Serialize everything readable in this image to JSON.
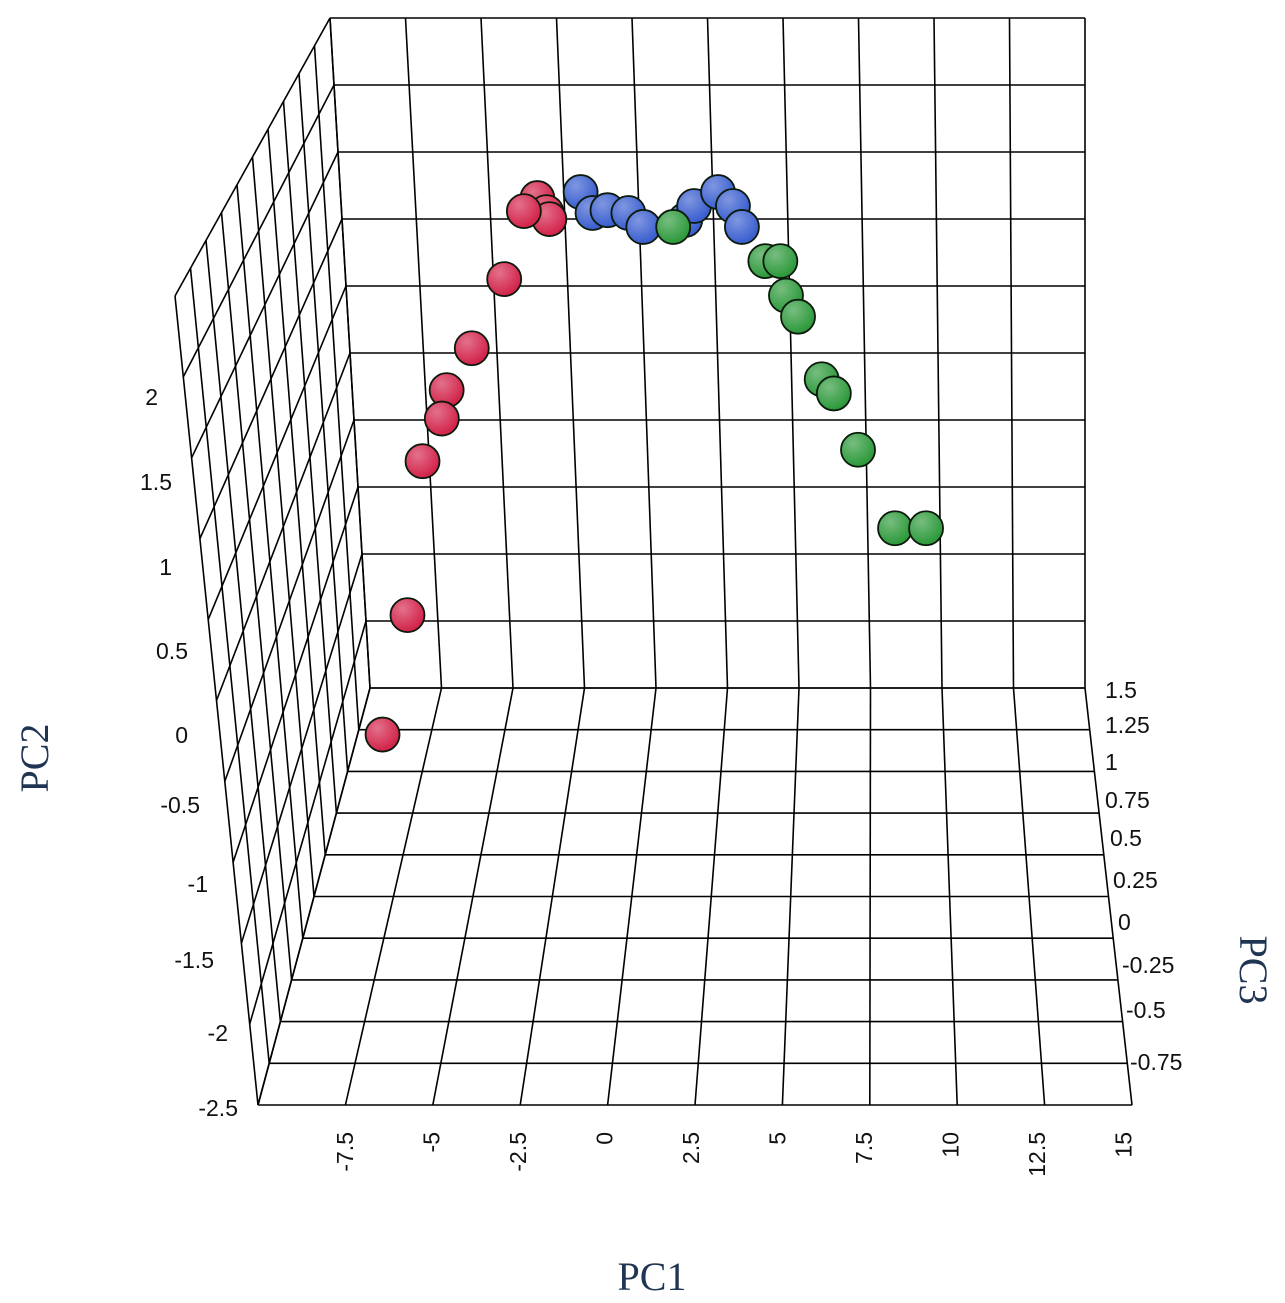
{
  "chart_data": {
    "type": "scatter",
    "title": "",
    "xlabel": "PC1",
    "ylabel": "PC2",
    "zlabel": "PC3",
    "x_ticks": [
      "-7.5",
      "-5",
      "-2.5",
      "0",
      "2.5",
      "5",
      "7.5",
      "10",
      "12.5",
      "15"
    ],
    "y_ticks": [
      "2",
      "1.5",
      "1",
      "0.5",
      "0",
      "-0.5",
      "-1",
      "-1.5",
      "-2",
      "-2.5"
    ],
    "z_ticks": [
      "1.5",
      "1.25",
      "1",
      "0.75",
      "0.5",
      "0.25",
      "0",
      "-0.25",
      "-0.5",
      "-0.75"
    ],
    "xlim": [
      -10,
      15
    ],
    "ylim": [
      -2.5,
      2.5
    ],
    "zlim": [
      -1,
      1.5
    ],
    "grid": true,
    "series": [
      {
        "color": "#d3254c",
        "points": [
          [
            -7.6,
            -1.2,
            0.05
          ],
          [
            -7.0,
            -0.55,
            0.2
          ],
          [
            -6.7,
            0.35,
            0.35
          ],
          [
            -6.2,
            0.55,
            0.45
          ],
          [
            -6.1,
            0.7,
            0.5
          ],
          [
            -5.4,
            0.9,
            0.6
          ],
          [
            -4.5,
            1.25,
            0.75
          ],
          [
            -4.0,
            1.6,
            0.9
          ],
          [
            -3.6,
            1.65,
            0.95
          ],
          [
            -3.3,
            1.55,
            0.95
          ],
          [
            -3.2,
            1.5,
            0.95
          ]
        ]
      },
      {
        "color": "#3b5fcf",
        "points": [
          [
            -2.2,
            1.65,
            1.0
          ],
          [
            -1.8,
            1.5,
            1.0
          ],
          [
            -1.3,
            1.52,
            1.0
          ],
          [
            -0.6,
            1.5,
            1.0
          ],
          [
            -0.1,
            1.4,
            1.0
          ],
          [
            1.3,
            1.45,
            1.0
          ],
          [
            1.6,
            1.55,
            1.0
          ],
          [
            2.4,
            1.65,
            1.0
          ],
          [
            2.9,
            1.55,
            1.0
          ],
          [
            3.2,
            1.4,
            1.0
          ]
        ]
      },
      {
        "color": "#2e9a3c",
        "points": [
          [
            0.9,
            1.4,
            1.0
          ],
          [
            4.0,
            1.2,
            0.95
          ],
          [
            4.5,
            1.2,
            0.95
          ],
          [
            4.7,
            1.0,
            0.9
          ],
          [
            5.1,
            0.85,
            0.9
          ],
          [
            5.9,
            0.5,
            0.8
          ],
          [
            6.3,
            0.4,
            0.8
          ],
          [
            7.1,
            0.1,
            0.7
          ],
          [
            8.3,
            -0.3,
            0.55
          ],
          [
            9.3,
            -0.3,
            0.55
          ]
        ]
      }
    ]
  }
}
